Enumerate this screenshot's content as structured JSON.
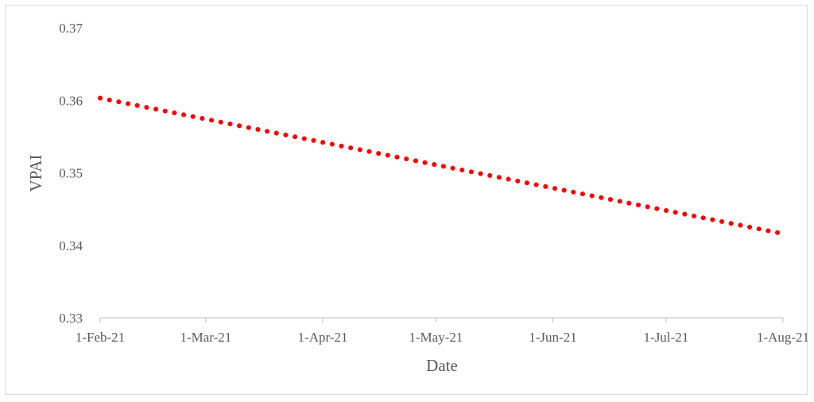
{
  "chart_data": {
    "type": "line",
    "title": "",
    "xlabel": "Date",
    "ylabel": "VPAI",
    "x_tick_labels": [
      "1-Feb-21",
      "1-Mar-21",
      "1-Apr-21",
      "1-May-21",
      "1-Jun-21",
      "1-Jul-21",
      "1-Aug-21"
    ],
    "x_tick_dates": [
      "2021-02-01",
      "2021-03-01",
      "2021-04-01",
      "2021-05-01",
      "2021-06-01",
      "2021-07-01",
      "2021-08-01"
    ],
    "y_tick_labels": [
      "0.33",
      "0.34",
      "0.35",
      "0.36",
      "0.37"
    ],
    "ylim": [
      0.33,
      0.37
    ],
    "xlim": [
      "2021-02-01",
      "2021-08-01"
    ],
    "grid": false,
    "legend": "none",
    "series": [
      {
        "color": "#ff0000",
        "line_style": "round-dotted",
        "x": [
          "2021-02-01",
          "2021-08-01"
        ],
        "values": [
          0.3603,
          0.3416
        ]
      }
    ]
  },
  "colors": {
    "axis": "#bfbfbf",
    "text": "#595959",
    "series": "#ff0000",
    "frame": "#d9d9d9"
  }
}
